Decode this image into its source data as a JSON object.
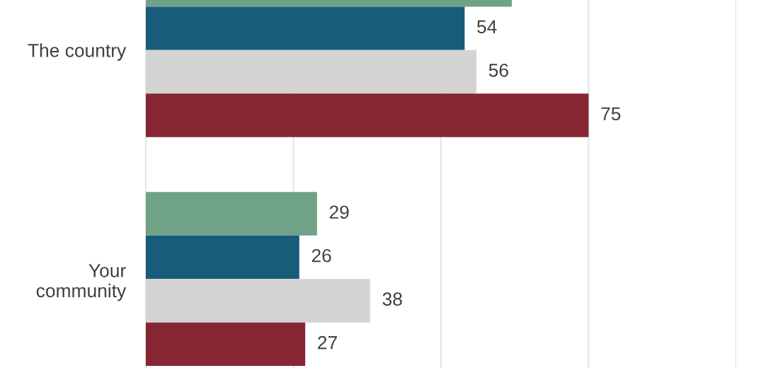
{
  "chart_data": {
    "type": "bar",
    "orientation": "horizontal",
    "categories": [
      "The country",
      "Your\ncommunity"
    ],
    "series": [
      {
        "color": "#6fa287",
        "values": [
          62,
          29
        ],
        "value_labels": [
          null,
          "29"
        ]
      },
      {
        "color": "#185c7b",
        "values": [
          54,
          26
        ],
        "value_labels": [
          "54",
          "26"
        ]
      },
      {
        "color": "#d4d4d4",
        "values": [
          56,
          38
        ],
        "value_labels": [
          "56",
          "38"
        ]
      },
      {
        "color": "#862633",
        "values": [
          75,
          27
        ],
        "value_labels": [
          "75",
          "27"
        ]
      }
    ],
    "xlim": [
      0,
      100
    ],
    "xticks": [
      {
        "value": 0,
        "label": null
      },
      {
        "value": 25,
        "label": null
      },
      {
        "value": 50,
        "label": null
      },
      {
        "value": 75,
        "label": null
      },
      {
        "value": 100,
        "label": null
      }
    ],
    "grid": "x",
    "tick_labels": "y"
  }
}
